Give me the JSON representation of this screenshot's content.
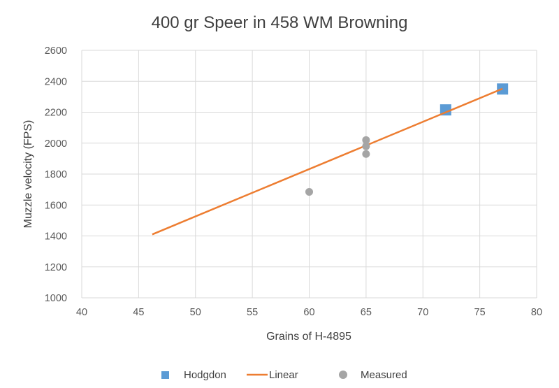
{
  "chart_data": {
    "type": "scatter",
    "title": "400 gr Speer in 458 WM Browning",
    "xlabel": "Grains of H-4895",
    "ylabel": "Muzzle velocity (FPS)",
    "xlim": [
      40,
      80
    ],
    "ylim": [
      1000,
      2600
    ],
    "x_ticks": [
      "40",
      "45",
      "50",
      "55",
      "60",
      "65",
      "70",
      "75",
      "80"
    ],
    "y_ticks": [
      "1000",
      "1200",
      "1400",
      "1600",
      "1800",
      "2000",
      "2200",
      "2400",
      "2600"
    ],
    "grid": "vertical and horizontal major gridlines",
    "legend_position": "bottom",
    "series": [
      {
        "name": "Hodgdon",
        "marker": "square",
        "color": "#5B9BD5",
        "points": [
          [
            72,
            2215
          ],
          [
            77,
            2350
          ]
        ]
      },
      {
        "name": "Linear",
        "kind": "trendline",
        "color": "#ED7D31",
        "points": [
          [
            46.2,
            1410
          ],
          [
            77,
            2352
          ]
        ]
      },
      {
        "name": "Measured",
        "marker": "circle",
        "color": "#A5A5A5",
        "points": [
          [
            60,
            1685
          ],
          [
            65,
            2020
          ],
          [
            65,
            1980
          ],
          [
            65,
            1930
          ]
        ]
      }
    ]
  }
}
